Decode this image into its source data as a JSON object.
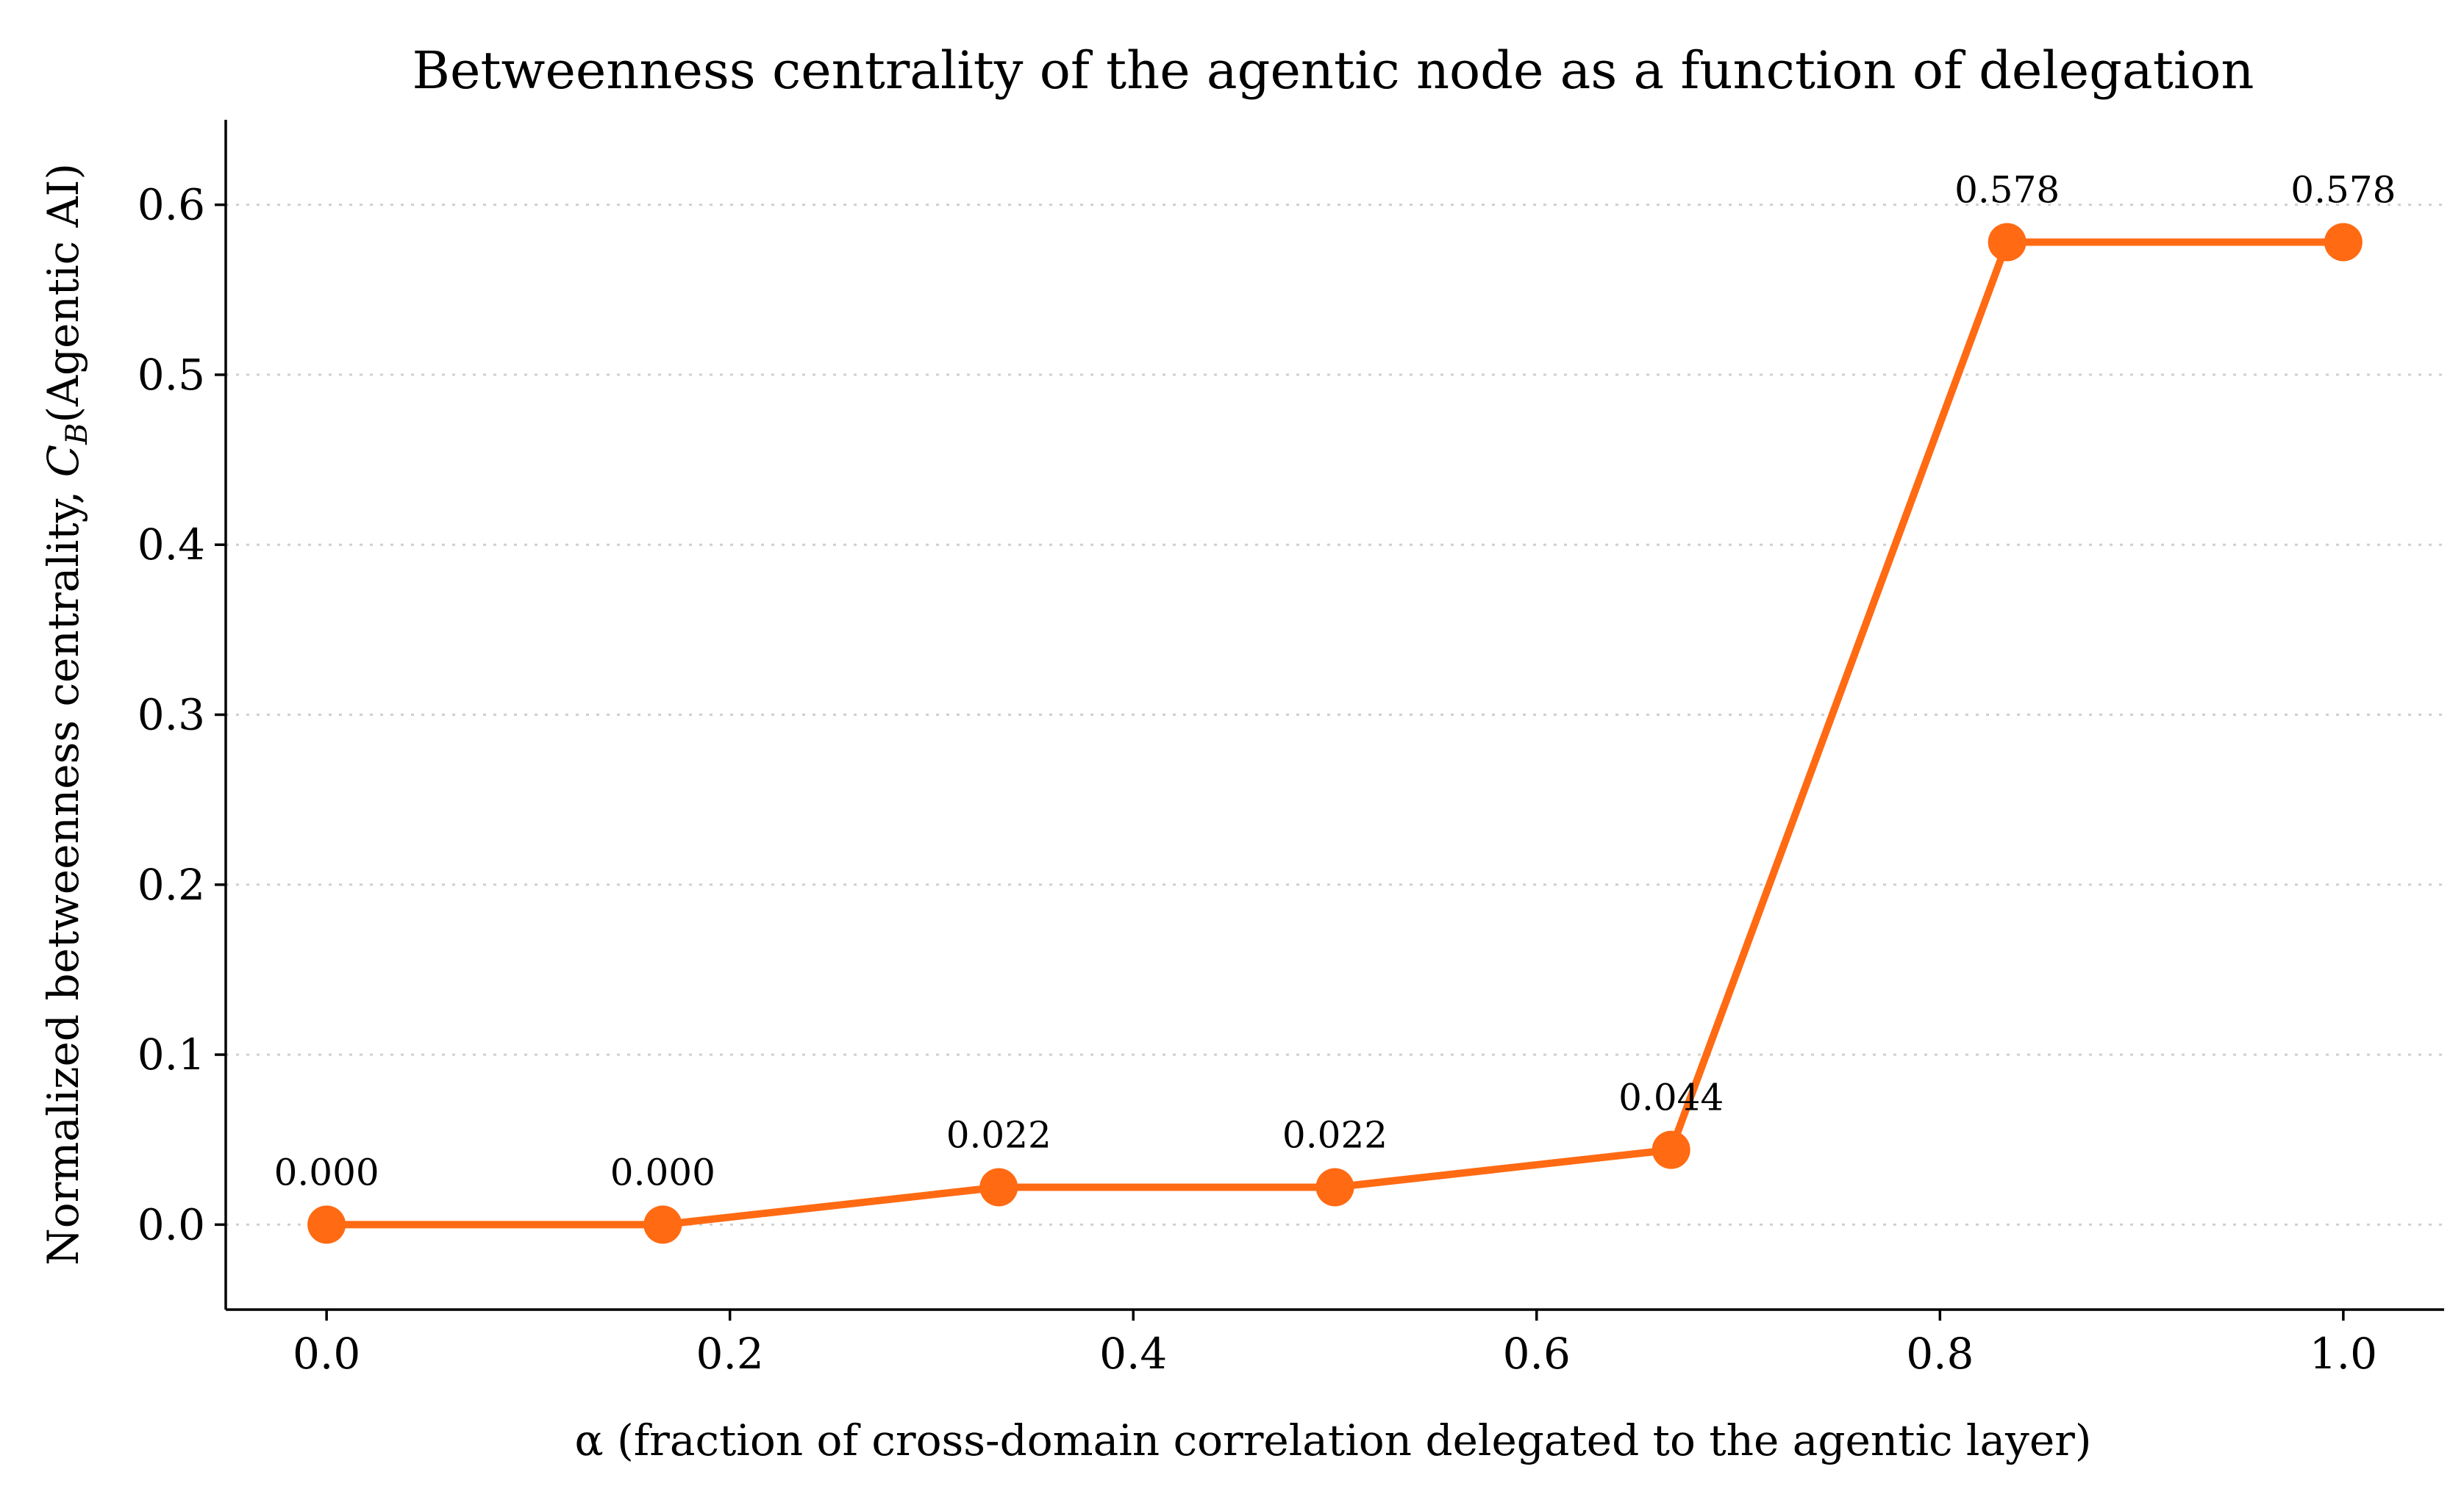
{
  "chart_data": {
    "type": "line",
    "title": "Betweenness centrality of the agentic node as a function of delegation",
    "xlabel": "α (fraction of cross-domain correlation delegated to the agentic layer)",
    "ylabel": "Normalized betweenness centrality, C_B(Agentic AI)",
    "ylabel_parts": {
      "prefix": "Normalized betweenness centrality, ",
      "symbol": "C",
      "subscript": "B",
      "suffix": "(Agentic AI)"
    },
    "xlim": [
      -0.05,
      1.05
    ],
    "ylim": [
      -0.05,
      0.65
    ],
    "xticks": [
      "0.0",
      "0.2",
      "0.4",
      "0.6",
      "0.8",
      "1.0"
    ],
    "yticks": [
      "0.0",
      "0.1",
      "0.2",
      "0.3",
      "0.4",
      "0.5",
      "0.6"
    ],
    "grid": "y-dotted",
    "series": [
      {
        "color": "#ff6a13",
        "x": [
          0.0,
          0.1667,
          0.3333,
          0.5,
          0.6667,
          0.8333,
          1.0
        ],
        "y": [
          0.0,
          0.0,
          0.022,
          0.022,
          0.044,
          0.578,
          0.578
        ],
        "labels": [
          "0.000",
          "0.000",
          "0.022",
          "0.022",
          "0.044",
          "0.578",
          "0.578"
        ]
      }
    ]
  }
}
